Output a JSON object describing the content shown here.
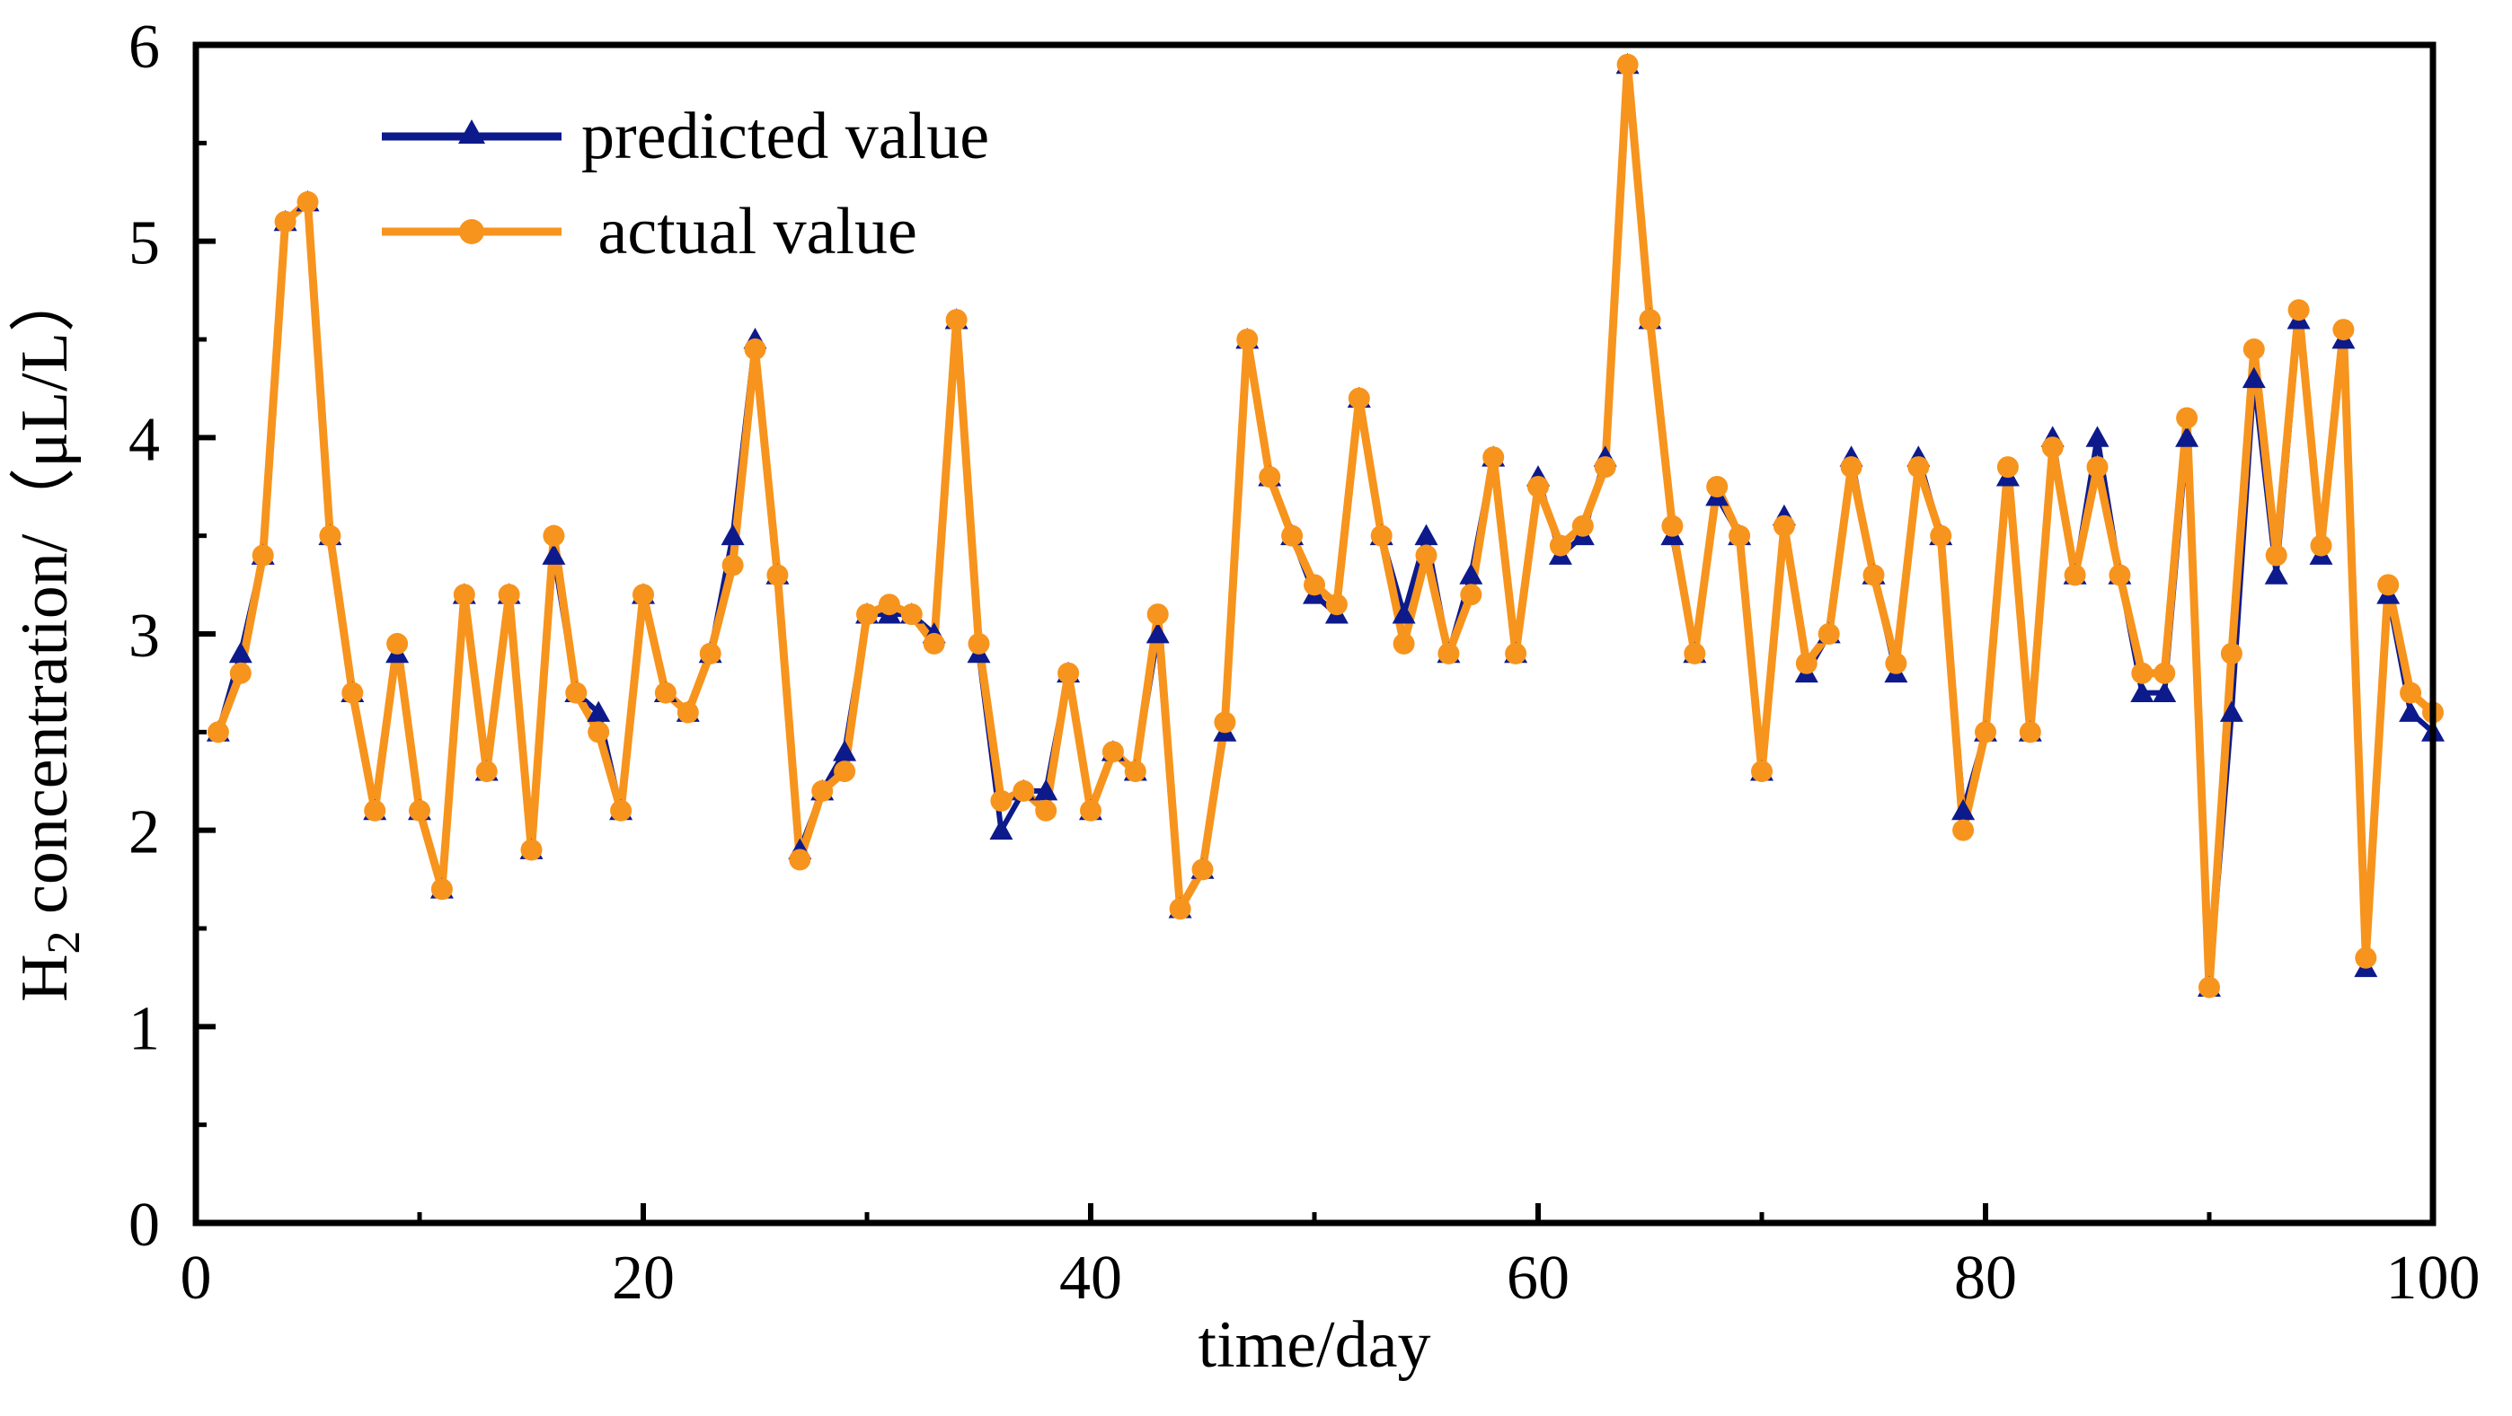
{
  "chart_data": {
    "type": "line",
    "title": "",
    "xlabel": "time/day",
    "ylabel": {
      "prefix": "H",
      "subscript": "2",
      "suffix": " concentration/（μL/L）"
    },
    "xlim": [
      0,
      100
    ],
    "ylim": [
      0,
      6
    ],
    "x_ticks": [
      0,
      20,
      40,
      60,
      80,
      100
    ],
    "y_ticks": [
      0,
      1,
      2,
      3,
      4,
      5,
      6
    ],
    "grid": false,
    "legend_position": "top-left",
    "x": [
      1,
      2,
      3,
      4,
      5,
      6,
      7,
      8,
      9,
      10,
      11,
      12,
      13,
      14,
      15,
      16,
      17,
      18,
      19,
      20,
      21,
      22,
      23,
      24,
      25,
      26,
      27,
      28,
      29,
      30,
      31,
      32,
      33,
      34,
      35,
      36,
      37,
      38,
      39,
      40,
      41,
      42,
      43,
      44,
      45,
      46,
      47,
      48,
      49,
      50,
      51,
      52,
      53,
      54,
      55,
      56,
      57,
      58,
      59,
      60,
      61,
      62,
      63,
      64,
      65,
      66,
      67,
      68,
      69,
      70,
      71,
      72,
      73,
      74,
      75,
      76,
      77,
      78,
      79,
      80,
      81,
      82,
      83,
      84,
      85,
      86,
      87,
      88,
      89,
      90,
      91,
      92,
      93,
      94,
      95,
      96,
      97,
      98,
      99,
      100
    ],
    "series": [
      {
        "name": "predicted value",
        "color": "#0d1a8c",
        "marker": "triangle",
        "values": [
          2.5,
          2.9,
          3.4,
          5.1,
          5.2,
          3.5,
          2.7,
          2.1,
          2.9,
          2.1,
          1.7,
          3.2,
          2.3,
          3.2,
          1.9,
          3.4,
          2.7,
          2.6,
          2.1,
          3.2,
          2.7,
          2.6,
          2.9,
          3.5,
          4.5,
          3.3,
          1.9,
          2.2,
          2.4,
          3.1,
          3.1,
          3.1,
          3.0,
          4.6,
          2.9,
          2.0,
          2.2,
          2.2,
          2.8,
          2.1,
          2.4,
          2.3,
          3.0,
          1.6,
          1.8,
          2.5,
          4.5,
          3.8,
          3.5,
          3.2,
          3.1,
          4.2,
          3.5,
          3.1,
          3.5,
          2.9,
          3.3,
          3.9,
          2.9,
          3.8,
          3.4,
          3.5,
          3.9,
          5.9,
          4.6,
          3.5,
          2.9,
          3.7,
          3.5,
          2.3,
          3.6,
          2.8,
          3.0,
          3.9,
          3.3,
          2.8,
          3.9,
          3.5,
          2.1,
          2.5,
          3.8,
          2.5,
          4.0,
          3.3,
          4.0,
          3.3,
          2.7,
          2.7,
          4.0,
          1.2,
          2.6,
          4.3,
          3.3,
          4.6,
          3.4,
          4.5,
          1.3,
          3.2,
          2.6,
          2.5
        ]
      },
      {
        "name": " actual value",
        "color": "#f7941d",
        "marker": "circle",
        "values": [
          2.5,
          2.8,
          3.4,
          5.1,
          5.2,
          3.5,
          2.7,
          2.1,
          2.95,
          2.1,
          1.7,
          3.2,
          2.3,
          3.2,
          1.9,
          3.5,
          2.7,
          2.5,
          2.1,
          3.2,
          2.7,
          2.6,
          2.9,
          3.35,
          4.45,
          3.3,
          1.85,
          2.2,
          2.3,
          3.1,
          3.15,
          3.1,
          2.95,
          4.6,
          2.95,
          2.15,
          2.2,
          2.1,
          2.8,
          2.1,
          2.4,
          2.3,
          3.1,
          1.6,
          1.8,
          2.55,
          4.5,
          3.8,
          3.5,
          3.25,
          3.15,
          4.2,
          3.5,
          2.95,
          3.4,
          2.9,
          3.2,
          3.9,
          2.9,
          3.75,
          3.45,
          3.55,
          3.85,
          5.9,
          4.6,
          3.55,
          2.9,
          3.75,
          3.5,
          2.3,
          3.55,
          2.85,
          3.0,
          3.85,
          3.3,
          2.85,
          3.85,
          3.5,
          2.0,
          2.5,
          3.85,
          2.5,
          3.95,
          3.3,
          3.85,
          3.3,
          2.8,
          2.8,
          4.1,
          1.2,
          2.9,
          4.45,
          3.4,
          4.65,
          3.45,
          4.55,
          1.35,
          3.25,
          2.7,
          2.6
        ]
      }
    ]
  }
}
